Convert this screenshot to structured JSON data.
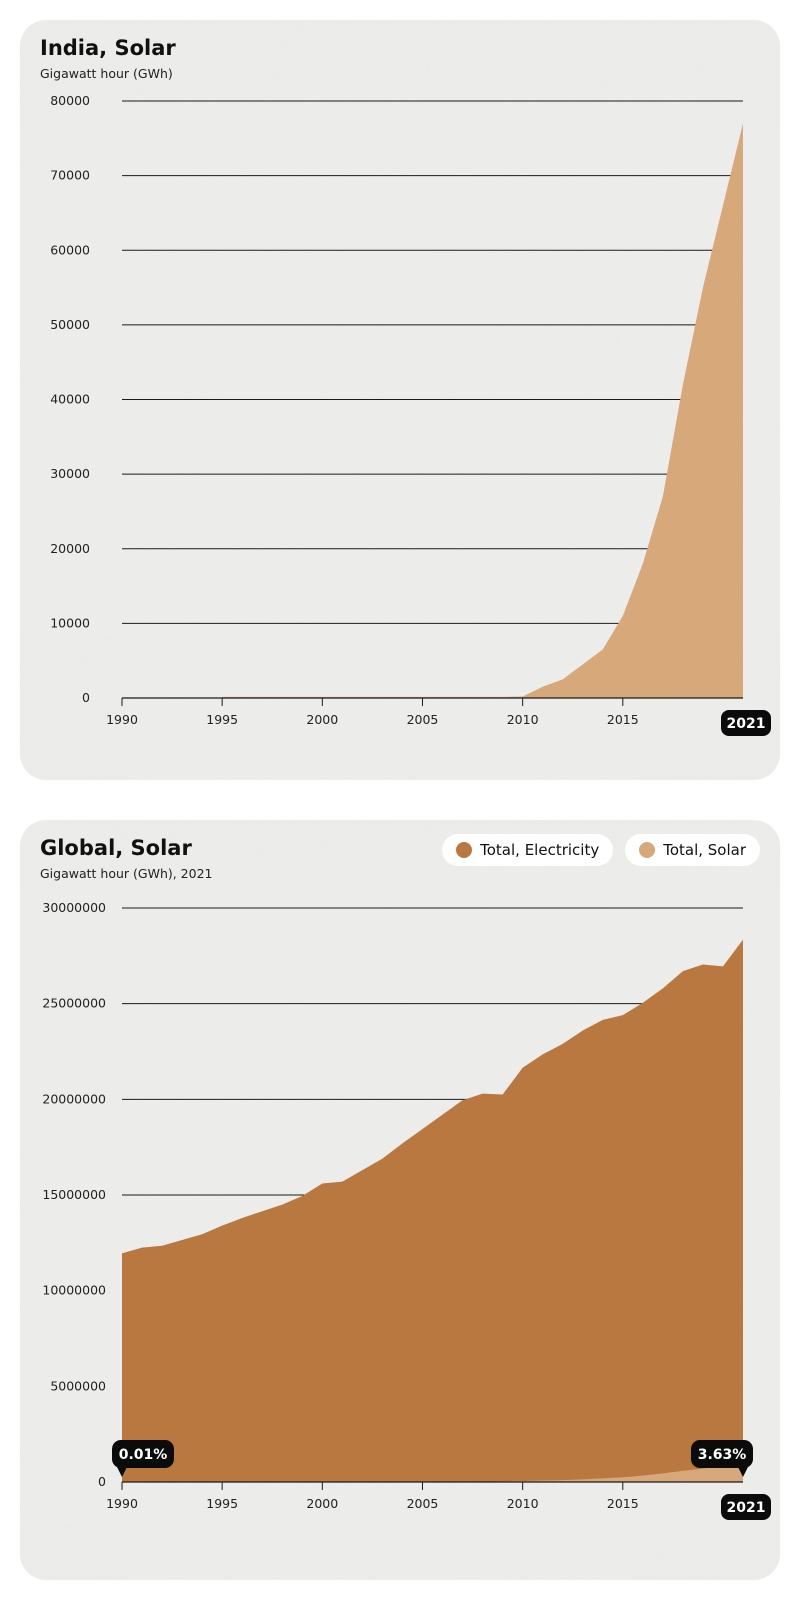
{
  "colors": {
    "electricity": "#b87840",
    "solar": "#d7a87a",
    "badge_bg": "#0b0b0b",
    "badge_text": "#ffffff",
    "grid": "#1a1a1a"
  },
  "chart_data": [
    {
      "type": "area",
      "title": "India, Solar",
      "ylabel": "Gigawatt hour (GWh)",
      "xlim": [
        1990,
        2021
      ],
      "ylim": [
        0,
        80000
      ],
      "yticks": [
        0,
        10000,
        20000,
        30000,
        40000,
        50000,
        60000,
        70000,
        80000
      ],
      "xticks": [
        1990,
        1995,
        2000,
        2005,
        2010,
        2015
      ],
      "grid": true,
      "highlight_label": "2021",
      "series": [
        {
          "x": [
            1995,
            1996,
            1997,
            1998,
            1999,
            2000,
            2001,
            2002,
            2003,
            2004,
            2005,
            2006,
            2007,
            2008,
            2009,
            2010,
            2011,
            2012,
            2013,
            2014,
            2015,
            2016,
            2017,
            2018,
            2019,
            2020,
            2021
          ],
          "values": [
            150,
            150,
            150,
            150,
            150,
            150,
            150,
            150,
            150,
            150,
            150,
            150,
            150,
            150,
            150,
            200,
            1500,
            2500,
            4500,
            6500,
            11000,
            18000,
            27000,
            42000,
            55000,
            66000,
            77000
          ]
        }
      ]
    },
    {
      "type": "area",
      "title": "Global, Solar",
      "ylabel": "Gigawatt hour (GWh), 2021",
      "xlim": [
        1990,
        2021
      ],
      "ylim": [
        0,
        30000000
      ],
      "yticks": [
        0,
        5000000,
        10000000,
        15000000,
        20000000,
        25000000,
        30000000
      ],
      "xticks": [
        1990,
        1995,
        2000,
        2005,
        2010,
        2015
      ],
      "grid": true,
      "legend": "top-right",
      "highlight_label": "2021",
      "annotations": [
        {
          "x": 1990,
          "label": "0.01%"
        },
        {
          "x": 2021,
          "label": "3.63%"
        }
      ],
      "series": [
        {
          "name": "Total, Electricity",
          "x": [
            1990,
            1991,
            1992,
            1993,
            1994,
            1995,
            1996,
            1997,
            1998,
            1999,
            2000,
            2001,
            2002,
            2003,
            2004,
            2005,
            2006,
            2007,
            2008,
            2009,
            2010,
            2011,
            2012,
            2013,
            2014,
            2015,
            2016,
            2017,
            2018,
            2019,
            2020,
            2021
          ],
          "values": [
            11950000,
            12250000,
            12350000,
            12650000,
            12950000,
            13400000,
            13800000,
            14150000,
            14500000,
            14950000,
            15600000,
            15700000,
            16300000,
            16900000,
            17700000,
            18450000,
            19200000,
            19950000,
            20300000,
            20250000,
            21650000,
            22350000,
            22900000,
            23600000,
            24150000,
            24400000,
            25050000,
            25800000,
            26700000,
            27050000,
            26950000,
            28350000
          ]
        },
        {
          "name": "Total, Solar",
          "x": [
            1990,
            1995,
            2000,
            2005,
            2008,
            2009,
            2010,
            2011,
            2012,
            2013,
            2014,
            2015,
            2016,
            2017,
            2018,
            2019,
            2020,
            2021
          ],
          "values": [
            1000,
            2000,
            5000,
            10000,
            20000,
            30000,
            50000,
            80000,
            100000,
            140000,
            190000,
            250000,
            330000,
            450000,
            580000,
            700000,
            850000,
            1030000
          ]
        }
      ]
    }
  ]
}
